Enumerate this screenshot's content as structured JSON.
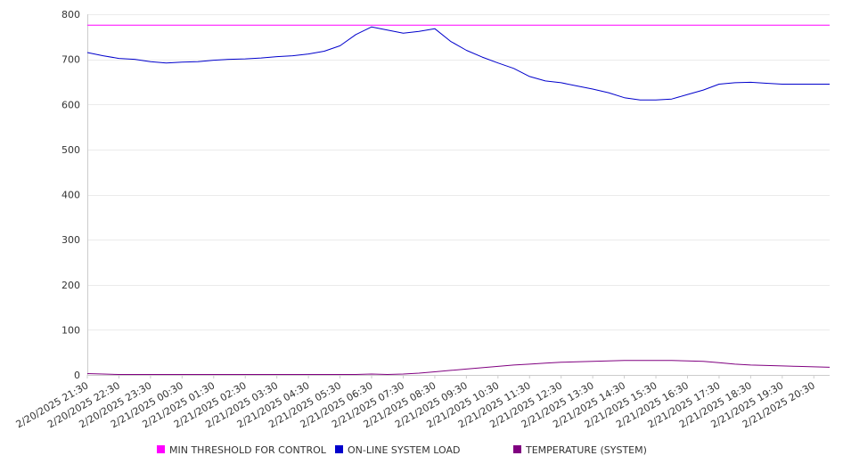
{
  "chart_data": {
    "type": "line",
    "title": "",
    "xlabel": "",
    "ylabel": "",
    "ylim": [
      0,
      800
    ],
    "yticks": [
      0,
      100,
      200,
      300,
      400,
      500,
      600,
      700,
      800
    ],
    "grid": "horizontal",
    "legend_position": "bottom",
    "xticks": [
      "2/20/2025 21:30",
      "2/20/2025 22:30",
      "2/20/2025 23:30",
      "2/21/2025 00:30",
      "2/21/2025 01:30",
      "2/21/2025 02:30",
      "2/21/2025 03:30",
      "2/21/2025 04:30",
      "2/21/2025 05:30",
      "2/21/2025 06:30",
      "2/21/2025 07:30",
      "2/21/2025 08:30",
      "2/21/2025 09:30",
      "2/21/2025 10:30",
      "2/21/2025 11:30",
      "2/21/2025 12:30",
      "2/21/2025 13:30",
      "2/21/2025 14:30",
      "2/21/2025 15:30",
      "2/21/2025 16:30",
      "2/21/2025 17:30",
      "2/21/2025 18:30",
      "2/21/2025 19:30",
      "2/21/2025 20:30"
    ],
    "x": [
      "2/20/2025 21:30",
      "2/20/2025 22:00",
      "2/20/2025 22:30",
      "2/20/2025 23:00",
      "2/20/2025 23:30",
      "2/21/2025 00:00",
      "2/21/2025 00:30",
      "2/21/2025 01:00",
      "2/21/2025 01:30",
      "2/21/2025 02:00",
      "2/21/2025 02:30",
      "2/21/2025 03:00",
      "2/21/2025 03:30",
      "2/21/2025 04:00",
      "2/21/2025 04:30",
      "2/21/2025 05:00",
      "2/21/2025 05:30",
      "2/21/2025 06:00",
      "2/21/2025 06:30",
      "2/21/2025 07:00",
      "2/21/2025 07:30",
      "2/21/2025 08:00",
      "2/21/2025 08:30",
      "2/21/2025 09:00",
      "2/21/2025 09:30",
      "2/21/2025 10:00",
      "2/21/2025 10:30",
      "2/21/2025 11:00",
      "2/21/2025 11:30",
      "2/21/2025 12:00",
      "2/21/2025 12:30",
      "2/21/2025 13:00",
      "2/21/2025 13:30",
      "2/21/2025 14:00",
      "2/21/2025 14:30",
      "2/21/2025 15:00",
      "2/21/2025 15:30",
      "2/21/2025 16:00",
      "2/21/2025 16:30",
      "2/21/2025 17:00",
      "2/21/2025 17:30",
      "2/21/2025 18:00",
      "2/21/2025 18:30",
      "2/21/2025 19:00",
      "2/21/2025 19:30",
      "2/21/2025 20:00",
      "2/21/2025 20:30",
      "2/21/2025 21:00"
    ],
    "series": [
      {
        "name": "MIN THRESHOLD FOR CONTROL",
        "color": "#ff00ff",
        "values": [
          776,
          776,
          776,
          776,
          776,
          776,
          776,
          776,
          776,
          776,
          776,
          776,
          776,
          776,
          776,
          776,
          776,
          776,
          776,
          776,
          776,
          776,
          776,
          776,
          776,
          776,
          776,
          776,
          776,
          776,
          776,
          776,
          776,
          776,
          776,
          776,
          776,
          776,
          776,
          776,
          776,
          776,
          776,
          776,
          776,
          776,
          776,
          776
        ]
      },
      {
        "name": "ON-LINE SYSTEM LOAD",
        "color": "#0000cc",
        "values": [
          715,
          708,
          702,
          700,
          695,
          692,
          694,
          695,
          698,
          700,
          701,
          703,
          706,
          708,
          712,
          718,
          730,
          755,
          772,
          765,
          758,
          762,
          768,
          740,
          720,
          705,
          692,
          680,
          662,
          652,
          648,
          641,
          634,
          626,
          615,
          610,
          610,
          612,
          622,
          632,
          645,
          648,
          649,
          647,
          645,
          645,
          645,
          645
        ]
      },
      {
        "name": "TEMPERATURE (SYSTEM)",
        "color": "#800080",
        "values": [
          3,
          2,
          1,
          1,
          1,
          1,
          1,
          1,
          1,
          1,
          1,
          1,
          1,
          1,
          1,
          1,
          1,
          1,
          2,
          1,
          2,
          4,
          7,
          10,
          13,
          16,
          19,
          22,
          24,
          26,
          28,
          29,
          30,
          31,
          32,
          32,
          32,
          32,
          31,
          30,
          27,
          24,
          22,
          21,
          20,
          19,
          18,
          17
        ]
      }
    ]
  }
}
